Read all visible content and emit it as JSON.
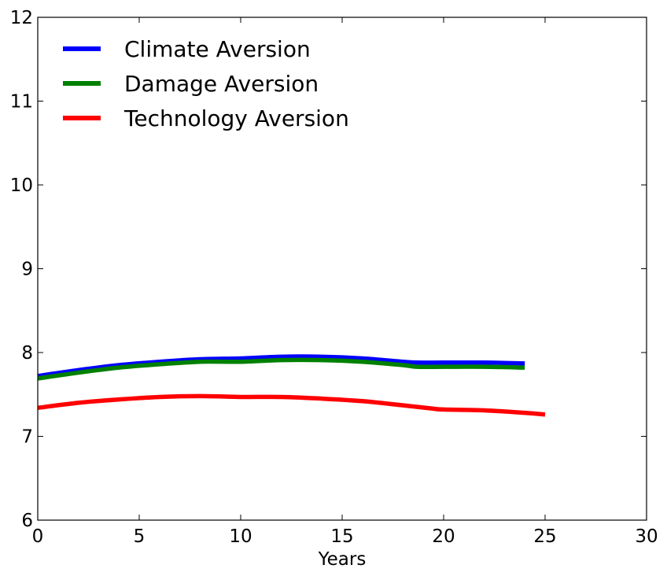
{
  "chart_data": {
    "type": "line",
    "title": "",
    "xlabel": "Years",
    "ylabel": "",
    "xlim": [
      0,
      30
    ],
    "ylim": [
      6,
      12
    ],
    "xticks": [
      0,
      5,
      10,
      15,
      20,
      25,
      30
    ],
    "yticks": [
      6,
      7,
      8,
      9,
      10,
      11,
      12
    ],
    "grid": false,
    "legend_position": "top-left",
    "series": [
      {
        "name": "Climate Aversion",
        "color": "#0000ff",
        "x": [
          0,
          2,
          4,
          6,
          8,
          10,
          12,
          14,
          16,
          18,
          18.7,
          20,
          22,
          24
        ],
        "y": [
          7.72,
          7.79,
          7.85,
          7.89,
          7.92,
          7.93,
          7.95,
          7.95,
          7.93,
          7.89,
          7.88,
          7.88,
          7.88,
          7.87
        ]
      },
      {
        "name": "Damage Aversion",
        "color": "#008000",
        "x": [
          0,
          2,
          4,
          6,
          8,
          10,
          12,
          14,
          16,
          18,
          18.7,
          20,
          22,
          24
        ],
        "y": [
          7.69,
          7.76,
          7.82,
          7.86,
          7.89,
          7.89,
          7.91,
          7.91,
          7.89,
          7.85,
          7.83,
          7.83,
          7.83,
          7.82
        ]
      },
      {
        "name": "Technology Aversion",
        "color": "#ff0000",
        "x": [
          0,
          2,
          4,
          6,
          8,
          10,
          12,
          14,
          16,
          18,
          19.5,
          20,
          22,
          24,
          25
        ],
        "y": [
          7.34,
          7.4,
          7.44,
          7.47,
          7.48,
          7.47,
          7.47,
          7.45,
          7.42,
          7.37,
          7.33,
          7.32,
          7.31,
          7.28,
          7.26
        ]
      }
    ]
  }
}
